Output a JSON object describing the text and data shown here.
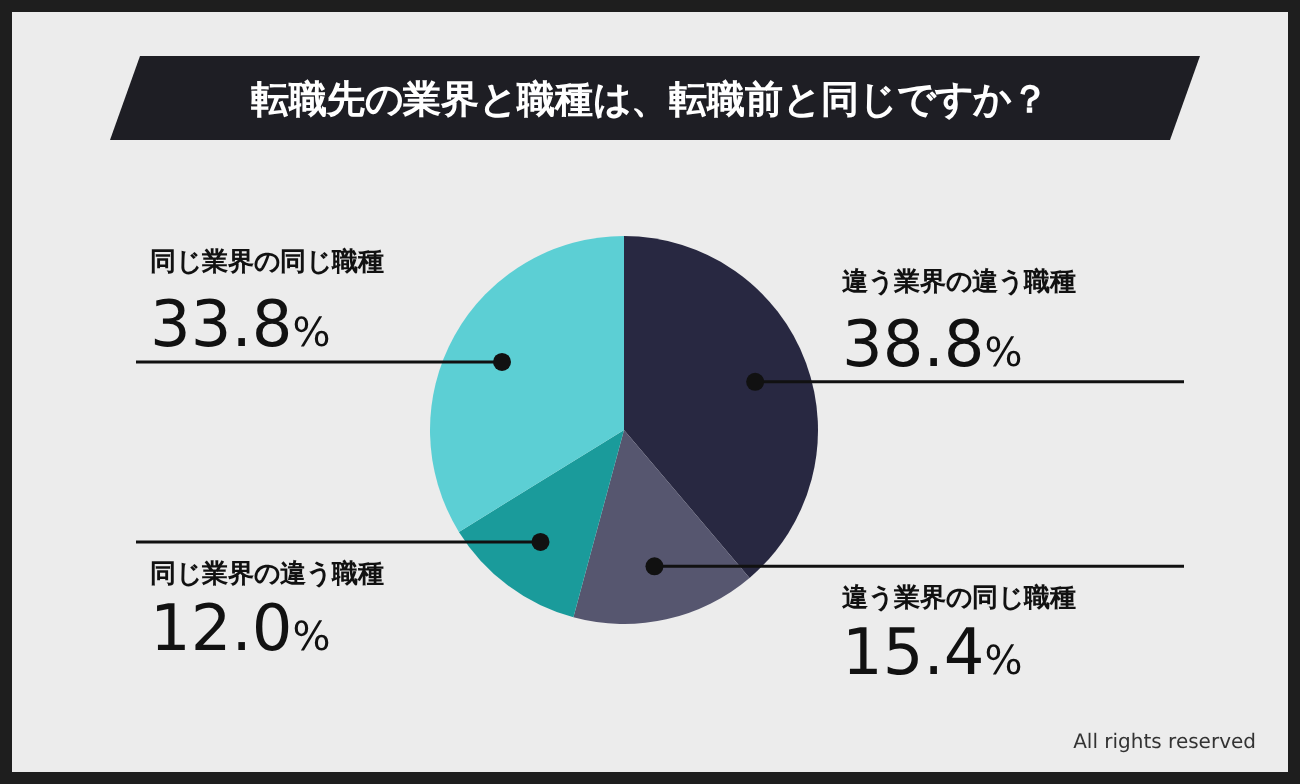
{
  "chart_data": {
    "type": "pie",
    "title": "転職先の業界と職種は、転職前と同じですか？",
    "categories": [
      "違う業界の違う職種",
      "違う業界の同じ職種",
      "同じ業界の違う職種",
      "同じ業界の同じ職種"
    ],
    "values": [
      38.8,
      15.4,
      12.0,
      33.8
    ],
    "colors": [
      "#282841",
      "#56566f",
      "#1a9b9b",
      "#5ccfd4"
    ],
    "value_labels": [
      "38.8%",
      "15.4%",
      "12.0%",
      "33.8%"
    ],
    "annotations": [
      "All rights reserved"
    ],
    "legend": false
  }
}
